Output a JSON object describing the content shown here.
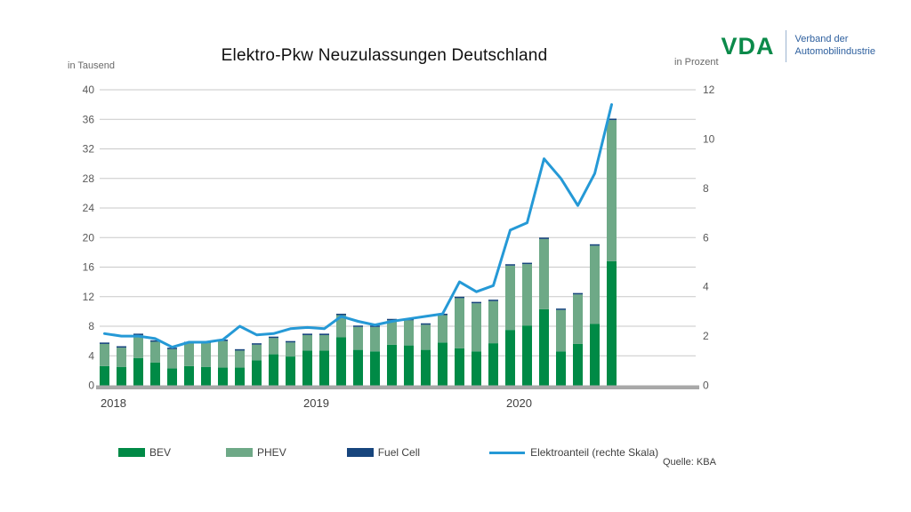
{
  "title": "Elektro-Pkw Neuzulassungen Deutschland",
  "source_note": "Quelle: KBA",
  "logo": {
    "wordmark": "VDA",
    "caption_line1": "Verband der",
    "caption_line2": "Automobilindustrie",
    "green": "#0b8a4a",
    "blue": "#2d5f9e",
    "divider_color": "#9bb4d0"
  },
  "axes": {
    "left_unit": "in Tausend",
    "right_unit": "in Prozent",
    "left_min": 0,
    "left_max": 40,
    "left_step": 4,
    "right_min": 0,
    "right_max": 12,
    "right_label_step": 2,
    "year_labels": [
      {
        "label": "2018",
        "month_index": 0
      },
      {
        "label": "2019",
        "month_index": 12
      },
      {
        "label": "2020",
        "month_index": 24
      }
    ]
  },
  "legend": {
    "bev": "BEV",
    "phev": "PHEV",
    "fuel_cell": "Fuel Cell",
    "share": "Elektroanteil (rechte Skala)"
  },
  "colors": {
    "bev": "#008a46",
    "phev": "#6ea987",
    "fuel_cell": "#17457d",
    "share_line": "#2599d6",
    "gridline": "#c9c9c9",
    "baseline": "#a8a8a8",
    "axis_text": "#595959",
    "label_text": "#404040"
  },
  "chart_data": {
    "type": "bar",
    "subtype": "stacked-bars-with-line",
    "title": "Elektro-Pkw Neuzulassungen Deutschland",
    "xlabel": "",
    "ylabel_left": "in Tausend",
    "ylabel_right": "in Prozent",
    "ylim_left": [
      0,
      40
    ],
    "ylim_right": [
      0,
      12
    ],
    "grid": true,
    "legend_position": "bottom",
    "categories": [
      "2018-01",
      "2018-02",
      "2018-03",
      "2018-04",
      "2018-05",
      "2018-06",
      "2018-07",
      "2018-08",
      "2018-09",
      "2018-10",
      "2018-11",
      "2018-12",
      "2019-01",
      "2019-02",
      "2019-03",
      "2019-04",
      "2019-05",
      "2019-06",
      "2019-07",
      "2019-08",
      "2019-09",
      "2019-10",
      "2019-11",
      "2019-12",
      "2020-01",
      "2020-02",
      "2020-03",
      "2020-04",
      "2020-05",
      "2020-06",
      "2020-07"
    ],
    "series": [
      {
        "name": "BEV",
        "axis": "left",
        "unit": "thousand",
        "values": [
          2.6,
          2.5,
          3.7,
          3.1,
          2.3,
          2.6,
          2.5,
          2.4,
          2.4,
          3.4,
          4.2,
          3.9,
          4.7,
          4.7,
          6.5,
          4.8,
          4.6,
          5.5,
          5.4,
          4.8,
          5.8,
          5.0,
          4.6,
          5.7,
          7.5,
          8.1,
          10.3,
          4.6,
          5.6,
          8.3,
          16.8
        ]
      },
      {
        "name": "PHEV",
        "axis": "left",
        "unit": "thousand",
        "values": [
          3.0,
          2.6,
          3.1,
          2.8,
          2.6,
          3.1,
          3.2,
          3.6,
          2.3,
          2.1,
          2.2,
          1.9,
          2.1,
          2.1,
          3.0,
          3.1,
          3.3,
          3.3,
          3.4,
          3.4,
          3.7,
          6.8,
          6.5,
          5.7,
          8.7,
          8.3,
          9.5,
          5.6,
          6.7,
          10.6,
          19.1
        ]
      },
      {
        "name": "Fuel Cell",
        "axis": "left",
        "unit": "thousand",
        "values": [
          0.1,
          0.1,
          0.1,
          0.1,
          0.1,
          0.1,
          0.1,
          0.1,
          0.1,
          0.1,
          0.1,
          0.1,
          0.1,
          0.1,
          0.1,
          0.1,
          0.1,
          0.1,
          0.1,
          0.1,
          0.1,
          0.1,
          0.1,
          0.1,
          0.1,
          0.1,
          0.1,
          0.1,
          0.1,
          0.1,
          0.1
        ]
      },
      {
        "name": "Elektroanteil (rechte Skala)",
        "axis": "right",
        "unit": "percent",
        "values": [
          2.1,
          2.0,
          2.0,
          1.9,
          1.55,
          1.75,
          1.75,
          1.85,
          2.4,
          2.05,
          2.1,
          2.3,
          2.35,
          2.3,
          2.8,
          2.6,
          2.45,
          2.6,
          2.7,
          2.8,
          2.9,
          4.2,
          3.8,
          4.05,
          6.3,
          6.6,
          9.2,
          8.4,
          7.3,
          8.6,
          11.4
        ]
      }
    ]
  }
}
